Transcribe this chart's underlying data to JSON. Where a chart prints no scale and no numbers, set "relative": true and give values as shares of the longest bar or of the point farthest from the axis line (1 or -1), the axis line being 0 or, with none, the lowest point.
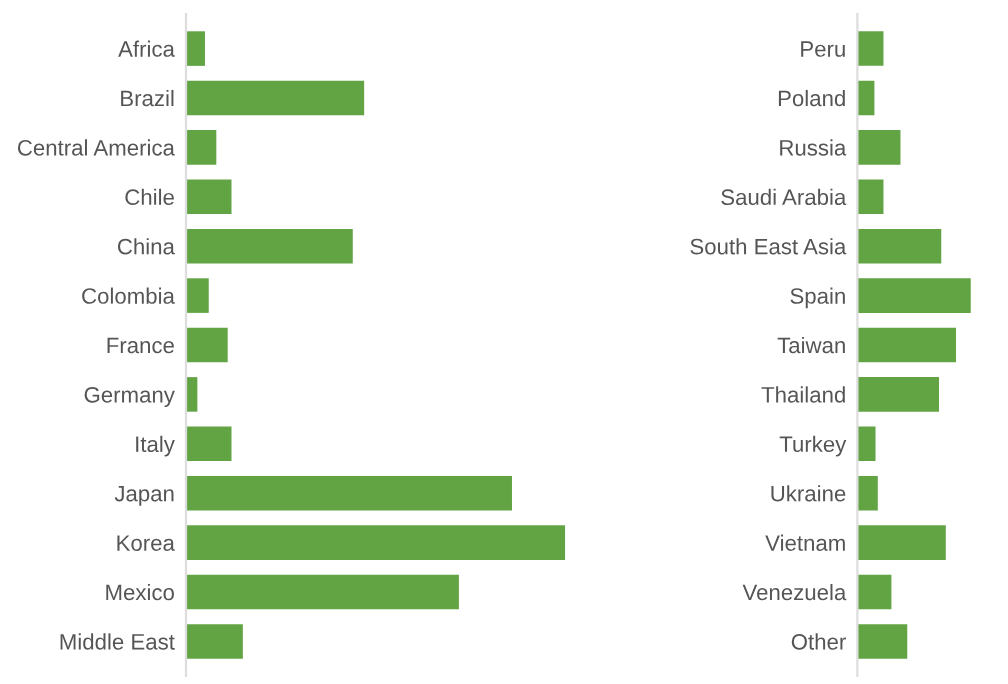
{
  "chart_data": [
    {
      "type": "bar",
      "orientation": "horizontal",
      "relative": true,
      "color": "#62a444",
      "grid": false,
      "legend": false,
      "categories": [
        "Africa",
        "Brazil",
        "Central America",
        "Chile",
        "China",
        "Colombia",
        "France",
        "Germany",
        "Italy",
        "Japan",
        "Korea",
        "Mexico",
        "Middle East"
      ],
      "values": [
        0.05,
        0.47,
        0.08,
        0.12,
        0.44,
        0.06,
        0.11,
        0.03,
        0.12,
        0.86,
        1,
        0.72,
        0.15
      ]
    },
    {
      "type": "bar",
      "orientation": "horizontal",
      "relative": true,
      "color": "#62a444",
      "grid": false,
      "legend": false,
      "categories": [
        "Peru",
        "Poland",
        "Russia",
        "Saudi Arabia",
        "South East Asia",
        "Spain",
        "Taiwan",
        "Thailand",
        "Turkey",
        "Ukraine",
        "Vietnam",
        "Venezuela",
        "Other"
      ],
      "values": [
        0.23,
        0.15,
        0.38,
        0.23,
        0.74,
        1,
        0.87,
        0.72,
        0.16,
        0.18,
        0.78,
        0.3,
        0.44
      ]
    }
  ]
}
